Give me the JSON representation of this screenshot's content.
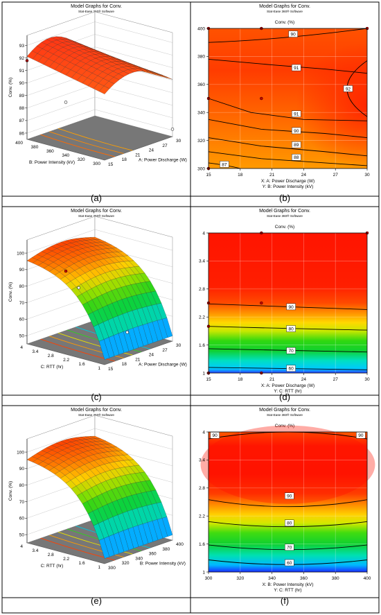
{
  "figure": {
    "panels": [
      {
        "id": "a",
        "label": "(a)",
        "header": "Model Graphs for Conv.",
        "software": "Stat-Ease 360® Software",
        "subtitle": "3D Surface",
        "zlabel": "Conv. (%)",
        "zticks": [
          "86",
          "87",
          "88",
          "89",
          "90",
          "91",
          "92",
          "93"
        ],
        "depth_label": "B: Power Intensity (kV)",
        "depth_ticks": [
          "300",
          "320",
          "340",
          "360",
          "380",
          "400"
        ],
        "right_label": "A: Power Discharge (W)",
        "right_ticks": [
          "15",
          "18",
          "21",
          "24",
          "27",
          "30"
        ],
        "colorscale": "orange-red"
      },
      {
        "id": "b",
        "label": "(b)",
        "header": "Model Graphs for Conv.",
        "software": "Stat-Ease 360® Software",
        "title": "Conv. (%)",
        "xlabel": "X: A: Power Discharge (W)",
        "ylabel": "Y: B: Power Intensity (kV)",
        "xticks": [
          "15",
          "18",
          "21",
          "24",
          "27",
          "30"
        ],
        "yticks": [
          "300",
          "320",
          "340",
          "360",
          "380",
          "400"
        ],
        "contour_labels": [
          "90",
          "91",
          "92",
          "91",
          "90",
          "89",
          "88",
          "87"
        ],
        "colorscale": "orange-red"
      },
      {
        "id": "c",
        "label": "(c)",
        "header": "Model Graphs for Conv.",
        "software": "Stat-Ease 360® Software",
        "subtitle": "3D Surface",
        "zlabel": "Conv. (%)",
        "zticks": [
          "50",
          "60",
          "70",
          "80",
          "90",
          "100"
        ],
        "depth_label": "C: RTT (hr)",
        "depth_ticks": [
          "1",
          "1.6",
          "2.2",
          "2.8",
          "3.4",
          "4"
        ],
        "right_label": "A: Power Discharge (W)",
        "right_ticks": [
          "15",
          "18",
          "21",
          "24",
          "27",
          "30"
        ],
        "colorscale": "rainbow"
      },
      {
        "id": "d",
        "label": "(d)",
        "header": "Model Graphs for Conv.",
        "software": "Stat-Ease 360® Software",
        "title": "Conv. (%)",
        "xlabel": "X: A: Power Discharge (W)",
        "ylabel": "Y: C: RTT (hr)",
        "xticks": [
          "15",
          "18",
          "21",
          "24",
          "27",
          "30"
        ],
        "yticks": [
          "1",
          "1.6",
          "2.2",
          "2.8",
          "3.4",
          "4"
        ],
        "contour_labels": [
          "90",
          "80",
          "70",
          "60"
        ],
        "colorscale": "rainbow"
      },
      {
        "id": "e",
        "label": "(e)",
        "header": "Model Graphs for Conv.",
        "software": "Stat-Ease 360® Software",
        "subtitle": "3D Surface",
        "zlabel": "Conv. (%)",
        "zticks": [
          "50",
          "60",
          "70",
          "80",
          "90",
          "100"
        ],
        "depth_label": "C: RTT (hr)",
        "depth_ticks": [
          "1",
          "1.6",
          "2.2",
          "2.8",
          "3.4",
          "4"
        ],
        "right_label": "B: Power Intensity (kV)",
        "right_ticks": [
          "300",
          "320",
          "340",
          "360",
          "380",
          "400"
        ],
        "colorscale": "rainbow"
      },
      {
        "id": "f",
        "label": "(f)",
        "header": "Model Graphs for Conv.",
        "software": "Stat-Ease 360® Software",
        "title": "Conv. (%)",
        "xlabel": "X: B: Power Intensity (kV)",
        "ylabel": "Y: C: RTT (hr)",
        "xticks": [
          "300",
          "320",
          "340",
          "360",
          "380",
          "400"
        ],
        "yticks": [
          "1",
          "1.6",
          "2.2",
          "2.8",
          "3.4",
          "4"
        ],
        "contour_labels": [
          "90",
          "90",
          "90",
          "80",
          "70",
          "60"
        ],
        "colorscale": "rainbow"
      }
    ]
  },
  "chart_data": [
    {
      "type": "surface",
      "panel": "a",
      "x_name": "A: Power Discharge (W)",
      "y_name": "B: Power Intensity (kV)",
      "z_name": "Conv. (%)",
      "xlim": [
        15,
        30
      ],
      "ylim": [
        300,
        400
      ],
      "zlim": [
        86,
        93
      ],
      "design_points": [
        {
          "x": 15,
          "y": 400,
          "z": 91.3
        },
        {
          "x": 15,
          "y": 350,
          "z": 89.2
        },
        {
          "x": 30,
          "y": 300,
          "z": 86.5
        }
      ]
    },
    {
      "type": "contour",
      "panel": "b",
      "x_name": "A: Power Discharge (W)",
      "y_name": "B: Power Intensity (kV)",
      "xlim": [
        15,
        30
      ],
      "ylim": [
        300,
        400
      ],
      "levels": [
        87,
        88,
        89,
        90,
        91,
        92
      ],
      "level_label_positions": [
        {
          "value": 90,
          "x": 23,
          "y": 396
        },
        {
          "value": 91,
          "x": 23.3,
          "y": 372
        },
        {
          "value": 92,
          "x": 28.2,
          "y": 357
        },
        {
          "value": 91,
          "x": 23.3,
          "y": 339
        },
        {
          "value": 90,
          "x": 23.3,
          "y": 327
        },
        {
          "value": 89,
          "x": 23.3,
          "y": 317
        },
        {
          "value": 88,
          "x": 23.3,
          "y": 308
        },
        {
          "value": 87,
          "x": 16.5,
          "y": 303
        }
      ],
      "design_points": [
        {
          "x": 15,
          "y": 400
        },
        {
          "x": 20,
          "y": 400
        },
        {
          "x": 30,
          "y": 400
        },
        {
          "x": 15,
          "y": 350
        },
        {
          "x": 20,
          "y": 350
        },
        {
          "x": 15,
          "y": 300
        }
      ]
    },
    {
      "type": "surface",
      "panel": "c",
      "x_name": "A: Power Discharge (W)",
      "y_name": "C: RTT (hr)",
      "z_name": "Conv. (%)",
      "xlim": [
        15,
        30
      ],
      "ylim": [
        1,
        4
      ],
      "zlim": [
        45,
        100
      ],
      "design_points": [
        {
          "x": 15,
          "y": 2.5,
          "z": 89
        },
        {
          "x": 15,
          "y": 2,
          "z": 82
        },
        {
          "x": 20,
          "y": 1,
          "z": 58
        }
      ]
    },
    {
      "type": "contour",
      "panel": "d",
      "x_name": "A: Power Discharge (W)",
      "y_name": "C: RTT (hr)",
      "xlim": [
        15,
        30
      ],
      "ylim": [
        1,
        4
      ],
      "levels": [
        60,
        70,
        80,
        90
      ],
      "level_label_positions": [
        {
          "value": 90,
          "x": 22.8,
          "y": 2.42
        },
        {
          "value": 80,
          "x": 22.8,
          "y": 1.95
        },
        {
          "value": 70,
          "x": 22.8,
          "y": 1.48
        },
        {
          "value": 60,
          "x": 22.8,
          "y": 1.1
        }
      ],
      "design_points": [
        {
          "x": 20,
          "y": 4
        },
        {
          "x": 30,
          "y": 4
        },
        {
          "x": 15,
          "y": 2.5
        },
        {
          "x": 20,
          "y": 2.5
        },
        {
          "x": 15,
          "y": 2
        },
        {
          "x": 15,
          "y": 1
        },
        {
          "x": 20,
          "y": 1
        }
      ]
    },
    {
      "type": "surface",
      "panel": "e",
      "x_name": "B: Power Intensity (kV)",
      "y_name": "C: RTT (hr)",
      "z_name": "Conv. (%)",
      "xlim": [
        300,
        400
      ],
      "ylim": [
        1,
        4
      ],
      "zlim": [
        45,
        100
      ]
    },
    {
      "type": "contour",
      "panel": "f",
      "x_name": "B: Power Intensity (kV)",
      "y_name": "C: RTT (hr)",
      "xlim": [
        300,
        400
      ],
      "ylim": [
        1,
        4
      ],
      "levels": [
        60,
        70,
        80,
        90
      ],
      "level_label_positions": [
        {
          "value": 90,
          "x": 304,
          "y": 3.93
        },
        {
          "value": 90,
          "x": 396,
          "y": 3.93
        },
        {
          "value": 90,
          "x": 351,
          "y": 2.63
        },
        {
          "value": 80,
          "x": 351,
          "y": 2.05
        },
        {
          "value": 70,
          "x": 351,
          "y": 1.53
        },
        {
          "value": 60,
          "x": 351,
          "y": 1.2
        }
      ]
    }
  ]
}
